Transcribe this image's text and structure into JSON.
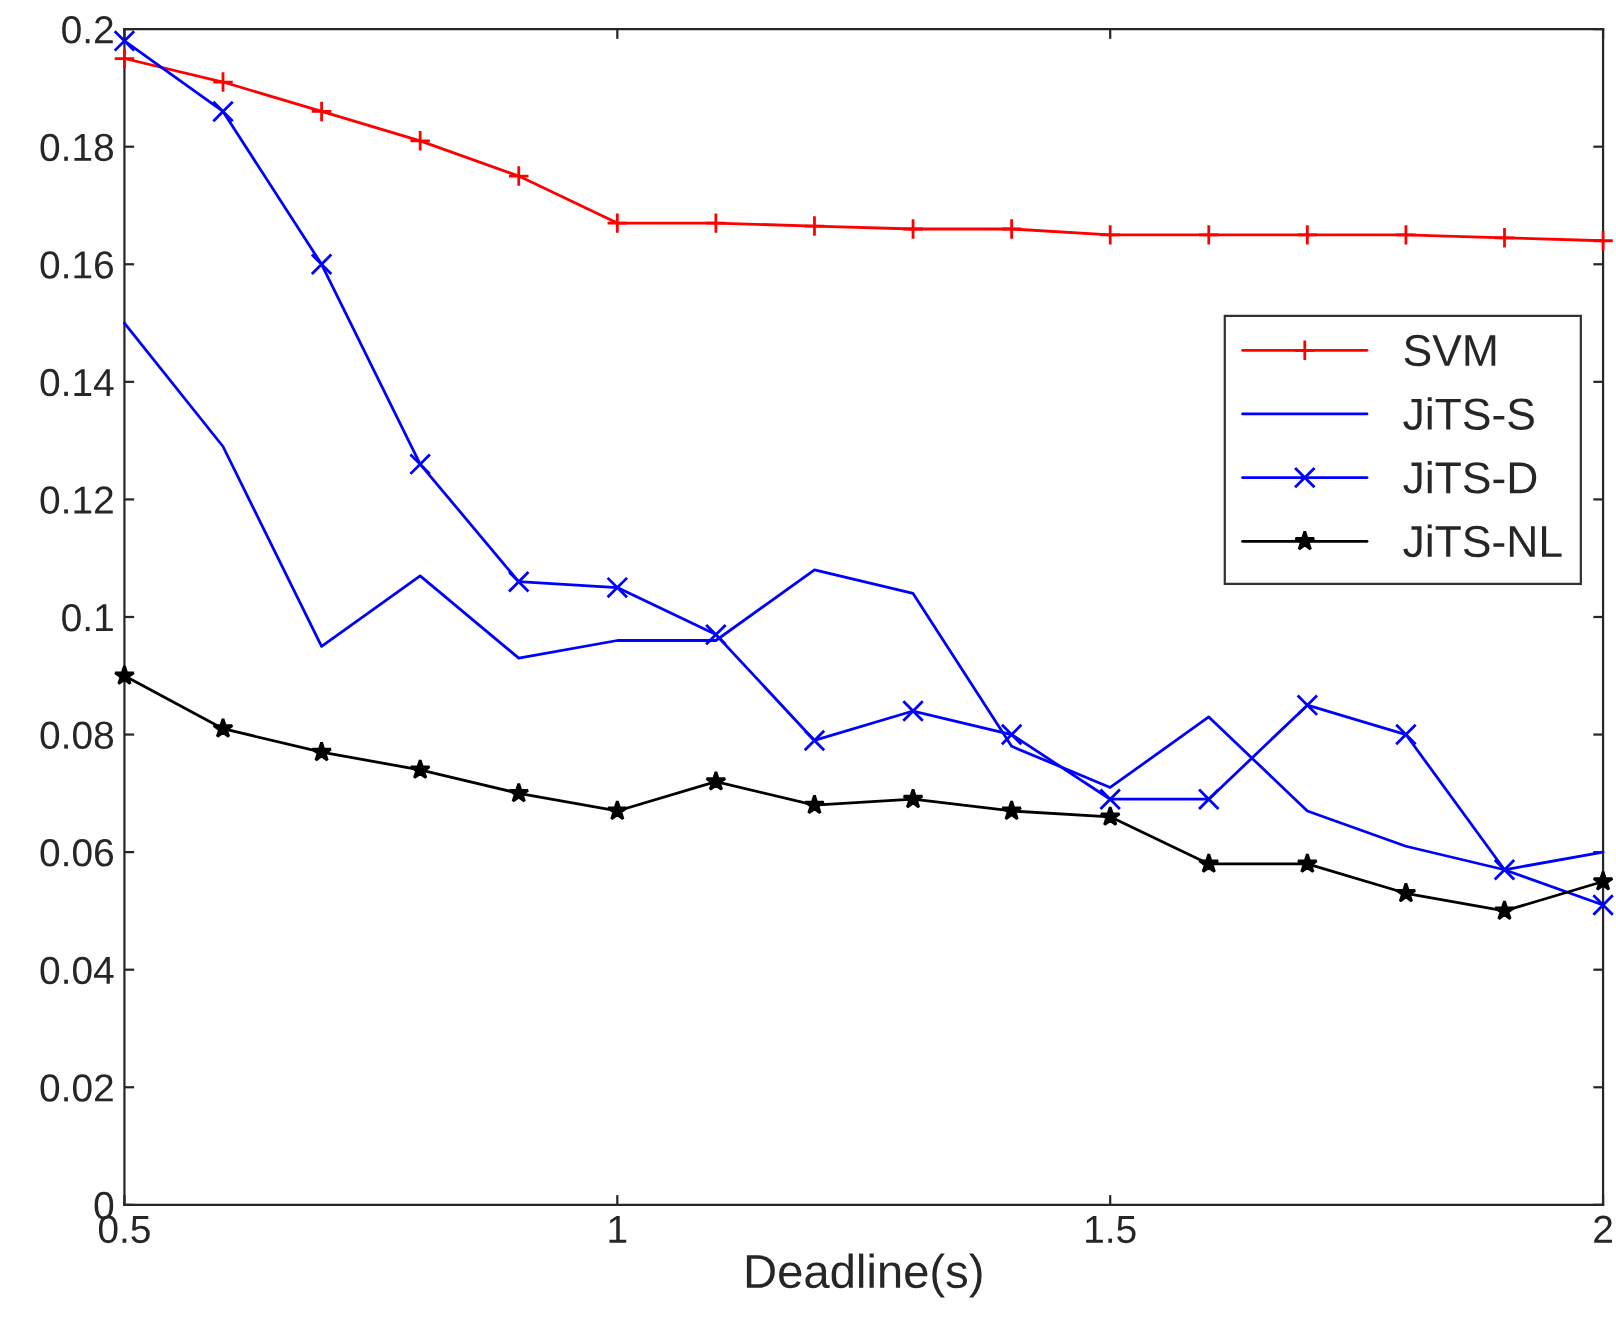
{
  "chart_data": {
    "type": "line",
    "xlabel": "Deadline(s)",
    "x": [
      0.5,
      0.6,
      0.7,
      0.8,
      0.9,
      1.0,
      1.1,
      1.2,
      1.3,
      1.4,
      1.5,
      1.6,
      1.7,
      1.8,
      1.9,
      2.0
    ],
    "series": [
      {
        "name": "SVM",
        "color": "#ff0000",
        "marker": "plus",
        "values": [
          0.195,
          0.191,
          0.186,
          0.181,
          0.175,
          0.167,
          0.167,
          0.1665,
          0.166,
          0.166,
          0.165,
          0.165,
          0.165,
          0.165,
          0.1645,
          0.164
        ]
      },
      {
        "name": "JiTS-S",
        "color": "#0000ff",
        "marker": "none",
        "values": [
          0.15,
          0.129,
          0.095,
          0.107,
          0.093,
          0.096,
          0.096,
          0.108,
          0.104,
          0.078,
          0.071,
          0.083,
          0.067,
          0.061,
          0.057,
          0.06
        ]
      },
      {
        "name": "JiTS-D",
        "color": "#0000ff",
        "marker": "cross",
        "values": [
          0.198,
          0.186,
          0.16,
          0.126,
          0.106,
          0.105,
          0.097,
          0.079,
          0.084,
          0.08,
          0.069,
          0.069,
          0.085,
          0.08,
          0.057,
          0.051
        ]
      },
      {
        "name": "JiTS-NL",
        "color": "#000000",
        "marker": "star",
        "values": [
          0.09,
          0.081,
          0.077,
          0.074,
          0.07,
          0.067,
          0.072,
          0.068,
          0.069,
          0.067,
          0.066,
          0.058,
          0.058,
          0.053,
          0.05,
          0.055
        ]
      }
    ],
    "xlim": [
      0.5,
      2
    ],
    "xticks": [
      0.5,
      1,
      1.5,
      2
    ],
    "ylim": [
      0,
      0.2
    ],
    "yticks": [
      0,
      0.02,
      0.04,
      0.06,
      0.08,
      0.1,
      0.12,
      0.14,
      0.16,
      0.18,
      0.2
    ],
    "grid": false,
    "legend": "right",
    "line_style": "solid"
  }
}
